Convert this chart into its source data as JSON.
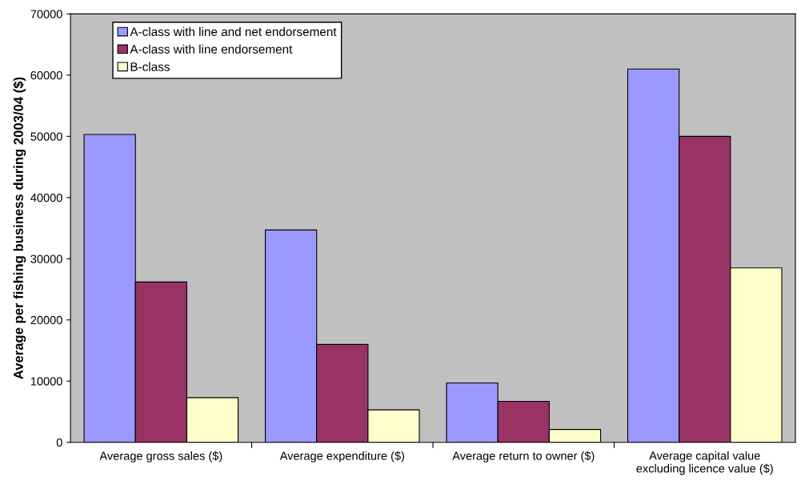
{
  "chart_data": {
    "type": "bar",
    "ylabel": "Average per fishing business during 2003/04 ($)",
    "categories": [
      "Average gross sales ($)",
      "Average expenditure ($)",
      "Average return to owner ($)",
      "Average capital value\nexcluding licence value ($)"
    ],
    "series": [
      {
        "name": "A-class with line and net endorsement",
        "color": "#9999ff",
        "values": [
          50300,
          34700,
          9700,
          61000
        ]
      },
      {
        "name": "A-class with line endorsement",
        "color": "#993366",
        "values": [
          26200,
          16000,
          6700,
          50000
        ]
      },
      {
        "name": "B-class",
        "color": "#ffffcc",
        "values": [
          7300,
          5300,
          2100,
          28500
        ]
      }
    ],
    "ylim": [
      0,
      70000
    ],
    "yticks": [
      0,
      10000,
      20000,
      30000,
      40000,
      50000,
      60000,
      70000
    ],
    "grid": false,
    "legend": "top left"
  }
}
